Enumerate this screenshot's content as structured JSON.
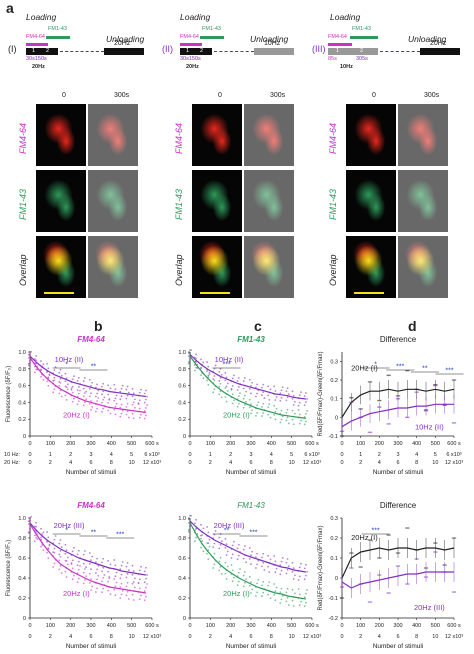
{
  "panel_a": {
    "letter": "a",
    "protocols": [
      {
        "id": "(I)",
        "loading": "Loading",
        "unloading": "Unloading",
        "dye1": "FM4-64",
        "dye2": "FM1-43",
        "freq_unload": "20Hz",
        "seg1": "1",
        "seg2": "2",
        "times": "30s150s",
        "freq_load": "20Hz"
      },
      {
        "id": "(II)",
        "loading": "Loading",
        "unloading": "Unloading",
        "dye1": "FM4-64",
        "dye2": "FM1-43",
        "freq_unload": "10Hz",
        "seg1": "1",
        "seg2": "2",
        "times": "30s150s",
        "freq_load": "20Hz"
      },
      {
        "id": "(III)",
        "loading": "Loading",
        "unloading": "Unloading",
        "dye1": "FM4-64",
        "dye2": "FM1-43",
        "freq_unload": "20Hz",
        "seg1": "1",
        "seg2": "2",
        "t1": "85s",
        "t2": "305s",
        "freq_load": "10Hz"
      }
    ],
    "col_time_labels": [
      "0",
      "300s"
    ],
    "row_labels": [
      "FM4-64",
      "FM1-43",
      "Overlap"
    ],
    "colors": {
      "magenta": "#c832c8",
      "green": "#2e9a5a",
      "red": "#e8281e",
      "yellow": "#f4e11a",
      "purple": "#8030c0"
    }
  },
  "panel_b_letter": "b",
  "panel_c_letter": "c",
  "panel_d_letter": "d",
  "xaxis_rows": {
    "row1_label": "10 Hz:",
    "row2_label": "20 Hz:",
    "row1_ticks": [
      "0",
      "1",
      "2",
      "3",
      "4",
      "5",
      "6 x10³"
    ],
    "row2_ticks": [
      "0",
      "2",
      "4",
      "6",
      "8",
      "10",
      "12 x10³"
    ],
    "stimuli_label": "Number of stimuli",
    "top_time_ticks": [
      "0",
      "100",
      "200",
      "300",
      "400",
      "500",
      "600 s"
    ]
  },
  "chart_data": [
    {
      "id": "b-top",
      "type": "scatter",
      "title": "FM4-64",
      "ylabel": "Fluorescence (δF/F₀)",
      "ylim": [
        0,
        1.0
      ],
      "yticks": [
        "0",
        "0.2",
        "0.4",
        "0.6",
        "0.8",
        "1.0"
      ],
      "xlim": [
        0,
        600
      ],
      "series": [
        {
          "name": "10Hz (II)",
          "color": "#8030c0",
          "x": [
            0,
            30,
            60,
            90,
            120,
            150,
            180,
            210,
            240,
            270,
            300,
            330,
            360,
            390,
            420,
            450,
            480,
            510,
            540,
            570
          ],
          "y": [
            0.95,
            0.88,
            0.82,
            0.77,
            0.73,
            0.7,
            0.67,
            0.64,
            0.62,
            0.6,
            0.58,
            0.56,
            0.55,
            0.53,
            0.52,
            0.51,
            0.5,
            0.49,
            0.48,
            0.47
          ]
        },
        {
          "name": "20Hz (I)",
          "color": "#c832c8",
          "x": [
            0,
            30,
            60,
            90,
            120,
            150,
            180,
            210,
            240,
            270,
            300,
            330,
            360,
            390,
            420,
            450,
            480,
            510,
            540,
            570
          ],
          "y": [
            0.93,
            0.83,
            0.74,
            0.67,
            0.61,
            0.56,
            0.52,
            0.48,
            0.45,
            0.42,
            0.4,
            0.38,
            0.36,
            0.34,
            0.33,
            0.32,
            0.31,
            0.3,
            0.29,
            0.28
          ]
        }
      ],
      "sig": [
        "*",
        "**"
      ]
    },
    {
      "id": "c-top",
      "type": "scatter",
      "title": "FM1-43",
      "ylim": [
        0,
        1.0
      ],
      "yticks": [
        "0",
        "0.2",
        "0.4",
        "0.6",
        "0.8",
        "1.0"
      ],
      "xlim": [
        0,
        600
      ],
      "series": [
        {
          "name": "10Hz (II)",
          "color": "#8030c0",
          "x": [
            0,
            30,
            60,
            90,
            120,
            150,
            180,
            210,
            240,
            270,
            300,
            330,
            360,
            390,
            420,
            450,
            480,
            510,
            540,
            570
          ],
          "y": [
            0.97,
            0.9,
            0.84,
            0.79,
            0.75,
            0.71,
            0.68,
            0.65,
            0.62,
            0.6,
            0.58,
            0.56,
            0.54,
            0.52,
            0.5,
            0.49,
            0.48,
            0.46,
            0.45,
            0.44
          ]
        },
        {
          "name": "20Hz (I)",
          "color": "#2e9a5a",
          "x": [
            0,
            30,
            60,
            90,
            120,
            150,
            180,
            210,
            240,
            270,
            300,
            330,
            360,
            390,
            420,
            450,
            480,
            510,
            540,
            570
          ],
          "y": [
            0.95,
            0.85,
            0.76,
            0.68,
            0.61,
            0.55,
            0.5,
            0.46,
            0.42,
            0.39,
            0.36,
            0.33,
            0.31,
            0.29,
            0.27,
            0.25,
            0.24,
            0.23,
            0.22,
            0.21
          ]
        }
      ],
      "sig": [
        "***"
      ]
    },
    {
      "id": "d-top",
      "type": "line",
      "title": "Difference",
      "ylabel": "Red(δF/Fmax)-Green(δF/Fmax)",
      "ylim": [
        -0.1,
        0.35
      ],
      "yticks": [
        "-0.1",
        "0",
        "0.1",
        "0.2",
        "0.3"
      ],
      "xlim": [
        0,
        600
      ],
      "series": [
        {
          "name": "20Hz (I)",
          "color": "#222222",
          "x": [
            0,
            50,
            100,
            150,
            200,
            250,
            300,
            350,
            400,
            450,
            500,
            550,
            600
          ],
          "y": [
            0.0,
            0.08,
            0.12,
            0.14,
            0.14,
            0.15,
            0.14,
            0.15,
            0.15,
            0.14,
            0.15,
            0.14,
            0.15
          ]
        },
        {
          "name": "10Hz (II)",
          "color": "#8030c0",
          "x": [
            0,
            50,
            100,
            150,
            200,
            250,
            300,
            350,
            400,
            450,
            500,
            550,
            600
          ],
          "y": [
            -0.05,
            -0.02,
            0.0,
            0.02,
            0.03,
            0.04,
            0.05,
            0.05,
            0.06,
            0.06,
            0.07,
            0.07,
            0.07
          ]
        }
      ],
      "sig": [
        "*",
        "***",
        "**",
        "***"
      ]
    },
    {
      "id": "b-bottom",
      "type": "scatter",
      "title": "FM4-64",
      "ylabel": "Fluorescence (δF/F₀)",
      "ylim": [
        0,
        1.0
      ],
      "yticks": [
        "0",
        "0.2",
        "0.4",
        "0.6",
        "0.8",
        "1.0"
      ],
      "xlim": [
        0,
        600
      ],
      "series": [
        {
          "name": "20Hz (III)",
          "color": "#8030c0",
          "x": [
            0,
            30,
            60,
            90,
            120,
            150,
            180,
            210,
            240,
            270,
            300,
            330,
            360,
            390,
            420,
            450,
            480,
            510,
            540,
            570
          ],
          "y": [
            0.95,
            0.88,
            0.82,
            0.77,
            0.73,
            0.69,
            0.66,
            0.63,
            0.6,
            0.58,
            0.56,
            0.54,
            0.52,
            0.5,
            0.49,
            0.47,
            0.46,
            0.45,
            0.44,
            0.43
          ]
        },
        {
          "name": "20Hz (I)",
          "color": "#c832c8",
          "x": [
            0,
            30,
            60,
            90,
            120,
            150,
            180,
            210,
            240,
            270,
            300,
            330,
            360,
            390,
            420,
            450,
            480,
            510,
            540,
            570
          ],
          "y": [
            0.94,
            0.84,
            0.75,
            0.67,
            0.6,
            0.54,
            0.5,
            0.46,
            0.43,
            0.4,
            0.37,
            0.35,
            0.33,
            0.31,
            0.3,
            0.29,
            0.28,
            0.27,
            0.26,
            0.25
          ]
        }
      ],
      "sig": [
        "*",
        "**",
        "***"
      ]
    },
    {
      "id": "c-bottom",
      "type": "scatter",
      "title": "FM1-43",
      "ylim": [
        0,
        1.0
      ],
      "yticks": [
        "0",
        "0.2",
        "0.4",
        "0.6",
        "0.8",
        "1.0"
      ],
      "xlim": [
        0,
        600
      ],
      "series": [
        {
          "name": "20Hz (III)",
          "color": "#8030c0",
          "x": [
            0,
            30,
            60,
            90,
            120,
            150,
            180,
            210,
            240,
            270,
            300,
            330,
            360,
            390,
            420,
            450,
            480,
            510,
            540,
            570
          ],
          "y": [
            0.97,
            0.91,
            0.86,
            0.82,
            0.78,
            0.75,
            0.72,
            0.69,
            0.66,
            0.63,
            0.61,
            0.59,
            0.57,
            0.55,
            0.53,
            0.51,
            0.5,
            0.48,
            0.47,
            0.46
          ]
        },
        {
          "name": "20Hz (I)",
          "color": "#2e9a5a",
          "x": [
            0,
            30,
            60,
            90,
            120,
            150,
            180,
            210,
            240,
            270,
            300,
            330,
            360,
            390,
            420,
            450,
            480,
            510,
            540,
            570
          ],
          "y": [
            0.95,
            0.84,
            0.74,
            0.66,
            0.59,
            0.53,
            0.48,
            0.44,
            0.4,
            0.37,
            0.34,
            0.31,
            0.29,
            0.27,
            0.25,
            0.24,
            0.22,
            0.21,
            0.2,
            0.19
          ]
        }
      ],
      "sig": [
        "**",
        "***"
      ]
    },
    {
      "id": "d-bottom",
      "type": "line",
      "title": "Difference",
      "ylabel": "Red(δF/Fmax)-Green(δF/Fmax)",
      "ylim": [
        -0.2,
        0.3
      ],
      "yticks": [
        "-0.2",
        "-0.1",
        "0",
        "0.1",
        "0.2",
        "0.3"
      ],
      "xlim": [
        0,
        600
      ],
      "series": [
        {
          "name": "20Hz (I)",
          "color": "#222222",
          "x": [
            0,
            50,
            100,
            150,
            200,
            250,
            300,
            350,
            400,
            450,
            500,
            550,
            600
          ],
          "y": [
            0.0,
            0.1,
            0.13,
            0.14,
            0.15,
            0.14,
            0.15,
            0.15,
            0.14,
            0.15,
            0.15,
            0.14,
            0.15
          ]
        },
        {
          "name": "20Hz (III)",
          "color": "#8030c0",
          "x": [
            0,
            50,
            100,
            150,
            200,
            250,
            300,
            350,
            400,
            450,
            500,
            550,
            600
          ],
          "y": [
            -0.02,
            -0.05,
            -0.03,
            -0.02,
            -0.01,
            0.0,
            0.01,
            0.02,
            0.02,
            0.03,
            0.03,
            0.03,
            0.03
          ]
        }
      ],
      "sig": [
        "***"
      ]
    }
  ]
}
